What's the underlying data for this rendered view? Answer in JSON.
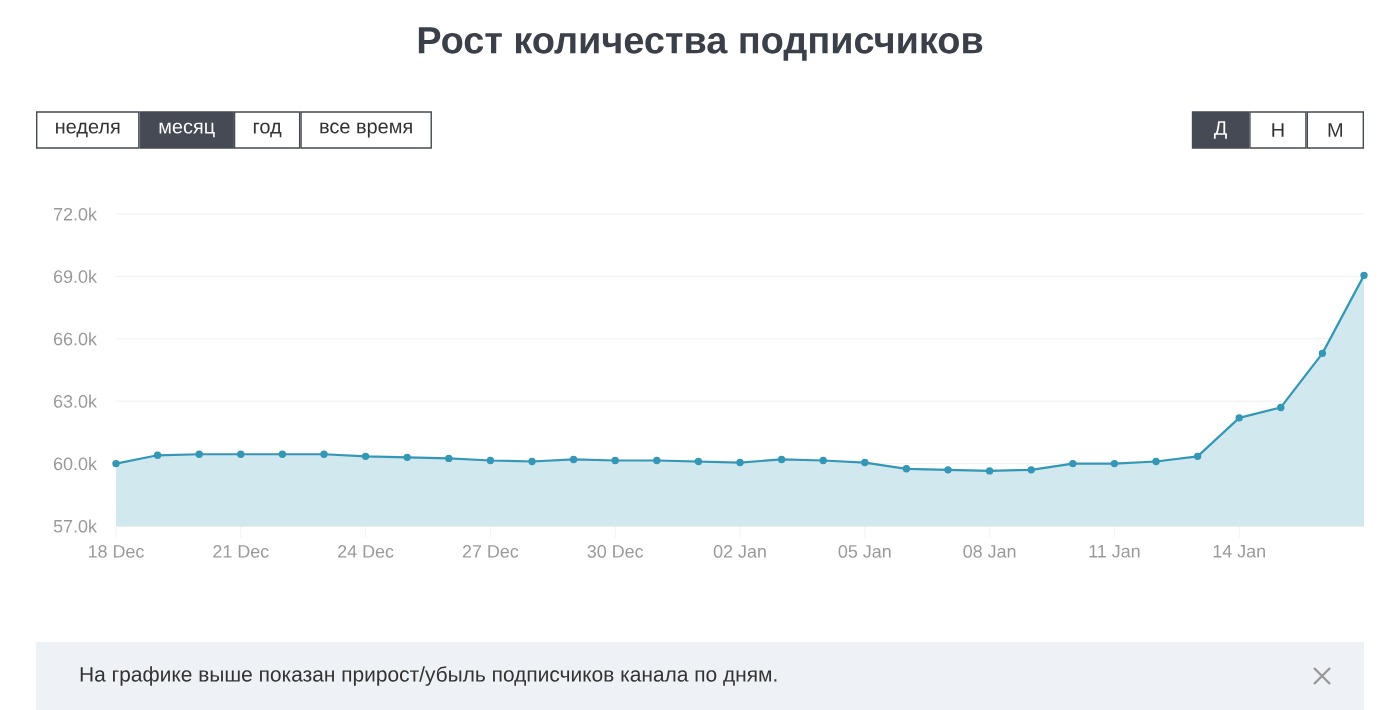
{
  "chart_data": {
    "type": "area",
    "title": "Рост количества подписчиков",
    "categories": [
      "18 Dec",
      null,
      null,
      "21 Dec",
      null,
      null,
      "24 Dec",
      null,
      null,
      "27 Dec",
      null,
      null,
      "30 Dec",
      null,
      null,
      "02 Jan",
      null,
      null,
      "05 Jan",
      null,
      null,
      "08 Jan",
      null,
      null,
      "11 Jan",
      null,
      null,
      "14 Jan",
      null,
      null,
      null
    ],
    "values": [
      60000,
      60400,
      60450,
      60450,
      60450,
      60450,
      60350,
      60300,
      60250,
      60150,
      60100,
      60200,
      60150,
      60150,
      60100,
      60050,
      60200,
      60150,
      60050,
      59750,
      59700,
      59650,
      59700,
      60000,
      60000,
      60100,
      60350,
      62200,
      62700,
      65300,
      69050
    ],
    "color": "#3497b5",
    "ylim": [
      57000,
      72000
    ],
    "yticks": [
      {
        "value": 57000,
        "label": "57.0k"
      },
      {
        "value": 60000,
        "label": "60.0k"
      },
      {
        "value": 63000,
        "label": "63.0k"
      },
      {
        "value": 66000,
        "label": "66.0k"
      },
      {
        "value": 69000,
        "label": "69.0k"
      },
      {
        "value": 72000,
        "label": "72.0k"
      }
    ],
    "grid": "y",
    "marker": "circle",
    "annotations": [
      "неделя",
      "месяц",
      "год",
      "все время",
      "Д",
      "Н",
      "М",
      "На графике выше показан прирост/убыль подписчиков канала по дням."
    ]
  }
}
